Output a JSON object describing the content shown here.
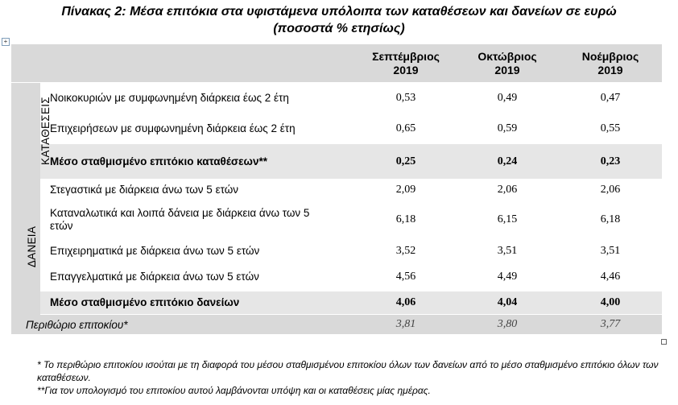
{
  "title": {
    "line1": "Πίνακας 2: Μέσα επιτόκια στα υφιστάμενα υπόλοιπα των καταθέσεων και δανείων σε ευρώ",
    "line2": "(ποσοστά % ετησίως)"
  },
  "table": {
    "months": [
      {
        "name": "Σεπτέμβριος",
        "year": "2019"
      },
      {
        "name": "Οκτώβριος",
        "year": "2019"
      },
      {
        "name": "Νοέμβριος",
        "year": "2019"
      }
    ],
    "deposits": {
      "group_label": "ΚΑΤΑΘΕΣΕΙΣ",
      "rows": [
        {
          "label": "Νοικοκυριών με συμφωνημένη διάρκεια έως 2 έτη",
          "values": [
            "0,53",
            "0,49",
            "0,47"
          ]
        },
        {
          "label": "Επιχειρήσεων με συμφωνημένη διάρκεια έως 2 έτη",
          "values": [
            "0,65",
            "0,59",
            "0,55"
          ]
        },
        {
          "label": "Μέσο σταθμισμένο επιτόκιο καταθέσεων**",
          "values": [
            "0,25",
            "0,24",
            "0,23"
          ]
        }
      ]
    },
    "loans": {
      "group_label": "ΔΑΝΕΙΑ",
      "rows": [
        {
          "label": "Στεγαστικά με διάρκεια άνω των 5 ετών",
          "values": [
            "2,09",
            "2,06",
            "2,06"
          ]
        },
        {
          "label": "Καταναλωτικά και λοιπά δάνεια με διάρκεια άνω των 5 ετών",
          "values": [
            "6,18",
            "6,15",
            "6,18"
          ]
        },
        {
          "label": "Επιχειρηματικά με διάρκεια άνω των 5 ετών",
          "values": [
            "3,52",
            "3,51",
            "3,51"
          ]
        },
        {
          "label": "Επαγγελματικά με διάρκεια άνω των 5 ετών",
          "values": [
            "4,56",
            "4,49",
            "4,46"
          ]
        },
        {
          "label": "Μέσο σταθμισμένο επιτόκιο δανείων",
          "values": [
            "4,06",
            "4,04",
            "4,00"
          ]
        }
      ]
    },
    "margin": {
      "label": "Περιθώριο επιτοκίου*",
      "values": [
        "3,81",
        "3,80",
        "3,77"
      ]
    }
  },
  "notes": [
    "* Το περιθώριο επιτοκίου ισούται με τη διαφορά του μέσου σταθμισμένου επιτοκίου όλων των δανείων από το μέσο σταθμισμένο επιτόκιο όλων των καταθέσεων.",
    "**Για τον υπολογισμό του επιτοκίου αυτού λαμβάνονται υπόψη και οι καταθέσεις μίας ημέρας."
  ],
  "icons": {
    "table_anchor": "move-handle-icon",
    "table_resize": "resize-handle-icon"
  }
}
